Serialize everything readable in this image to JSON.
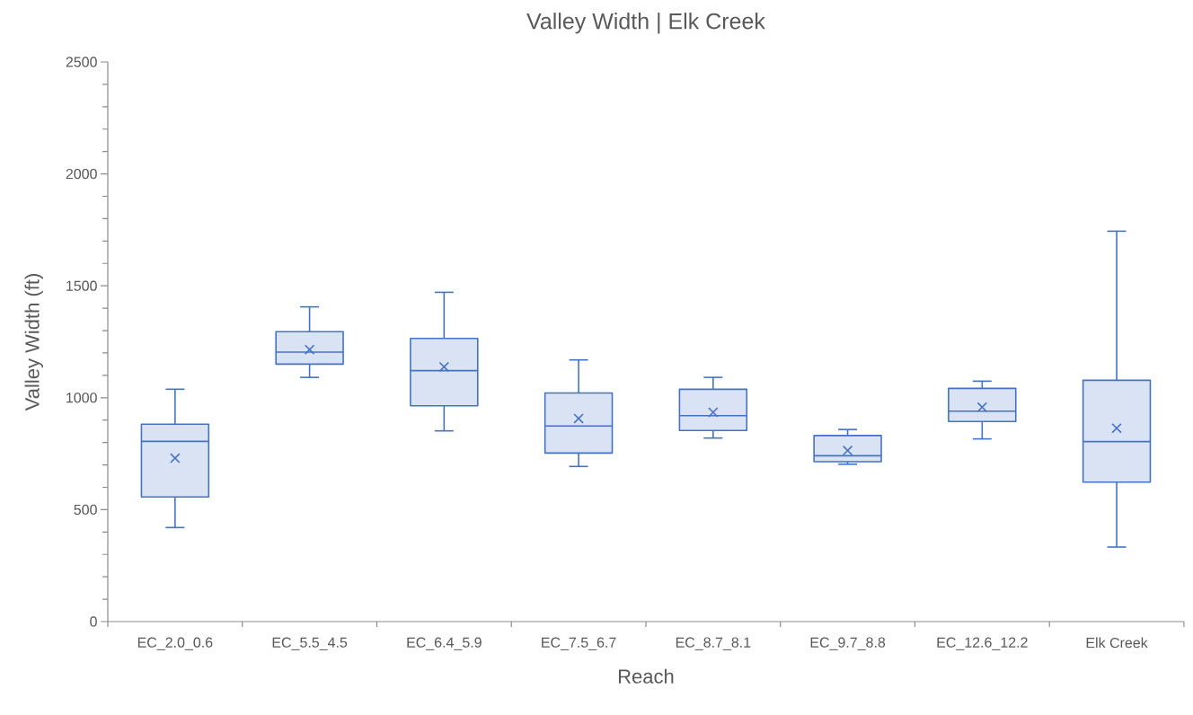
{
  "chart_data": {
    "type": "box",
    "title": "Valley Width | Elk Creek",
    "xlabel": "Reach",
    "ylabel": "Valley Width (ft)",
    "categories": [
      "EC_2.0_0.6",
      "EC_5.5_4.5",
      "EC_6.4_5.9",
      "EC_7.5_6.7",
      "EC_8.7_8.1",
      "EC_9.7_8.8",
      "EC_12.6_12.2",
      "Elk Creek"
    ],
    "color": "#4472c4",
    "boxes": [
      {
        "low": 420,
        "q1": 557,
        "median": 805,
        "q3": 882,
        "high": 1038,
        "mean": 730
      },
      {
        "low": 1091,
        "q1": 1150,
        "median": 1204,
        "q3": 1295,
        "high": 1406,
        "mean": 1215
      },
      {
        "low": 852,
        "q1": 964,
        "median": 1121,
        "q3": 1265,
        "high": 1471,
        "mean": 1138
      },
      {
        "low": 693,
        "q1": 753,
        "median": 874,
        "q3": 1021,
        "high": 1169,
        "mean": 907
      },
      {
        "low": 820,
        "q1": 854,
        "median": 920,
        "q3": 1038,
        "high": 1091,
        "mean": 935
      },
      {
        "low": 703,
        "q1": 714,
        "median": 741,
        "q3": 831,
        "high": 858,
        "mean": 764
      },
      {
        "low": 816,
        "q1": 894,
        "median": 940,
        "q3": 1042,
        "high": 1074,
        "mean": 958
      },
      {
        "low": 333,
        "q1": 623,
        "median": 804,
        "q3": 1078,
        "high": 1744,
        "mean": 864
      }
    ],
    "ylim": [
      0,
      2500
    ],
    "yticks": [
      0,
      500,
      1000,
      1500,
      2000,
      2500
    ]
  }
}
